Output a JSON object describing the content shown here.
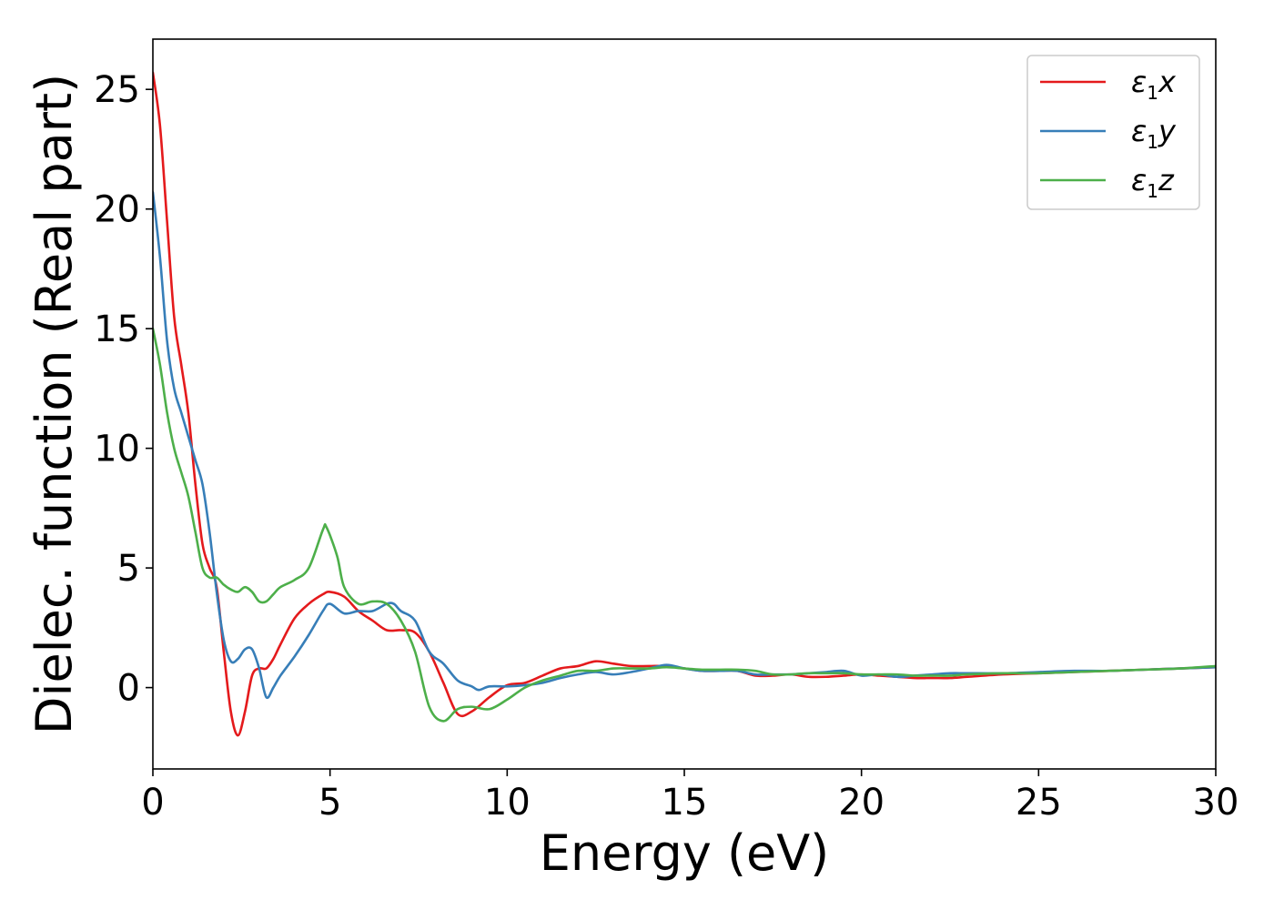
{
  "chart_data": {
    "type": "line",
    "xlabel": "Energy (eV)",
    "ylabel": "Dielec. function (Real part)",
    "xlim": [
      0,
      30
    ],
    "ylim": [
      -3.4,
      27.1
    ],
    "xticks": [
      0,
      5,
      10,
      15,
      20,
      25,
      30
    ],
    "yticks": [
      0,
      5,
      10,
      15,
      20,
      25
    ],
    "grid": false,
    "legend_position": "top-right",
    "series": [
      {
        "name": "x",
        "legend_base": "ε",
        "legend_sub": "1",
        "color": "#e41a1c",
        "x": [
          0,
          0.2,
          0.4,
          0.6,
          0.8,
          1.0,
          1.2,
          1.4,
          1.6,
          1.8,
          2.0,
          2.2,
          2.4,
          2.6,
          2.8,
          3.0,
          3.2,
          3.4,
          3.6,
          4.0,
          4.4,
          4.8,
          5.0,
          5.4,
          5.8,
          6.2,
          6.6,
          7.0,
          7.4,
          7.8,
          8.2,
          8.6,
          9.0,
          9.5,
          10.0,
          10.5,
          11.0,
          11.5,
          12.0,
          12.5,
          13.0,
          13.5,
          14.0,
          14.5,
          15.0,
          15.5,
          16.0,
          16.5,
          17.0,
          17.5,
          18.0,
          18.5,
          19.0,
          19.5,
          20.0,
          20.5,
          21.0,
          21.5,
          22.0,
          22.5,
          23.0,
          24.0,
          25.0,
          26.0,
          27.0,
          28.0,
          29.0,
          30.0
        ],
        "y": [
          25.7,
          23.5,
          19.5,
          15.5,
          13.5,
          11.5,
          8.5,
          6.0,
          5.0,
          4.2,
          1.5,
          -1.0,
          -2.0,
          -1.0,
          0.5,
          0.8,
          0.8,
          1.2,
          1.8,
          2.9,
          3.5,
          3.9,
          4.0,
          3.8,
          3.2,
          2.8,
          2.4,
          2.4,
          2.3,
          1.5,
          0.2,
          -1.1,
          -1.0,
          -0.4,
          0.1,
          0.2,
          0.5,
          0.8,
          0.9,
          1.1,
          1.0,
          0.9,
          0.9,
          0.9,
          0.8,
          0.7,
          0.7,
          0.7,
          0.5,
          0.5,
          0.55,
          0.45,
          0.45,
          0.5,
          0.55,
          0.5,
          0.45,
          0.4,
          0.4,
          0.4,
          0.45,
          0.55,
          0.6,
          0.65,
          0.7,
          0.75,
          0.8,
          0.85
        ]
      },
      {
        "name": "y",
        "legend_base": "ε",
        "legend_sub": "1",
        "color": "#377eb8",
        "x": [
          0,
          0.2,
          0.4,
          0.6,
          0.8,
          1.0,
          1.2,
          1.4,
          1.6,
          1.8,
          2.0,
          2.2,
          2.4,
          2.6,
          2.8,
          3.0,
          3.2,
          3.4,
          3.6,
          4.0,
          4.4,
          4.8,
          5.0,
          5.4,
          5.8,
          6.2,
          6.6,
          6.8,
          7.0,
          7.4,
          7.8,
          8.2,
          8.6,
          9.0,
          9.2,
          9.5,
          10.0,
          10.5,
          11.0,
          11.5,
          12.0,
          12.5,
          13.0,
          13.5,
          14.0,
          14.5,
          15.0,
          15.5,
          16.0,
          16.5,
          17.0,
          17.5,
          18.0,
          18.5,
          19.0,
          19.5,
          20.0,
          20.5,
          21.0,
          21.5,
          22.0,
          22.5,
          23.0,
          24.0,
          25.0,
          26.0,
          27.0,
          28.0,
          29.0,
          30.0
        ],
        "y": [
          20.7,
          18.0,
          14.5,
          12.5,
          11.5,
          10.5,
          9.5,
          8.5,
          6.5,
          4.0,
          2.0,
          1.1,
          1.2,
          1.6,
          1.6,
          0.8,
          -0.4,
          0.0,
          0.5,
          1.3,
          2.2,
          3.2,
          3.5,
          3.1,
          3.2,
          3.2,
          3.5,
          3.5,
          3.2,
          2.8,
          1.5,
          1.0,
          0.3,
          0.05,
          -0.1,
          0.05,
          0.05,
          0.1,
          0.2,
          0.4,
          0.55,
          0.65,
          0.55,
          0.65,
          0.8,
          0.95,
          0.8,
          0.7,
          0.7,
          0.7,
          0.55,
          0.55,
          0.55,
          0.6,
          0.65,
          0.7,
          0.5,
          0.55,
          0.45,
          0.5,
          0.55,
          0.6,
          0.6,
          0.6,
          0.65,
          0.7,
          0.7,
          0.75,
          0.8,
          0.85
        ]
      },
      {
        "name": "z",
        "legend_base": "ε",
        "legend_sub": "1",
        "color": "#4daf4a",
        "x": [
          0,
          0.2,
          0.4,
          0.6,
          0.8,
          1.0,
          1.2,
          1.4,
          1.6,
          1.8,
          2.0,
          2.2,
          2.4,
          2.6,
          2.8,
          3.0,
          3.2,
          3.4,
          3.6,
          4.0,
          4.4,
          4.8,
          4.9,
          5.2,
          5.4,
          5.8,
          6.2,
          6.6,
          7.0,
          7.4,
          7.8,
          8.2,
          8.6,
          9.0,
          9.5,
          10.0,
          10.5,
          11.0,
          11.5,
          12.0,
          12.5,
          13.0,
          13.5,
          14.0,
          14.5,
          15.0,
          15.5,
          16.0,
          16.5,
          17.0,
          17.5,
          18.0,
          18.5,
          19.0,
          19.5,
          20.0,
          20.5,
          21.0,
          21.5,
          22.0,
          22.5,
          23.0,
          24.0,
          25.0,
          26.0,
          27.0,
          28.0,
          29.0,
          30.0
        ],
        "y": [
          15.0,
          13.5,
          11.5,
          10.0,
          9.0,
          8.0,
          6.5,
          5.0,
          4.6,
          4.6,
          4.3,
          4.1,
          4.0,
          4.2,
          4.0,
          3.6,
          3.6,
          3.9,
          4.2,
          4.5,
          5.0,
          6.6,
          6.7,
          5.5,
          4.2,
          3.5,
          3.6,
          3.5,
          2.8,
          1.5,
          -0.8,
          -1.4,
          -0.9,
          -0.8,
          -0.9,
          -0.5,
          0.0,
          0.3,
          0.5,
          0.7,
          0.7,
          0.8,
          0.8,
          0.8,
          0.85,
          0.8,
          0.75,
          0.75,
          0.75,
          0.7,
          0.55,
          0.55,
          0.6,
          0.6,
          0.6,
          0.55,
          0.55,
          0.55,
          0.5,
          0.5,
          0.5,
          0.55,
          0.6,
          0.6,
          0.65,
          0.7,
          0.75,
          0.8,
          0.9
        ]
      }
    ]
  }
}
